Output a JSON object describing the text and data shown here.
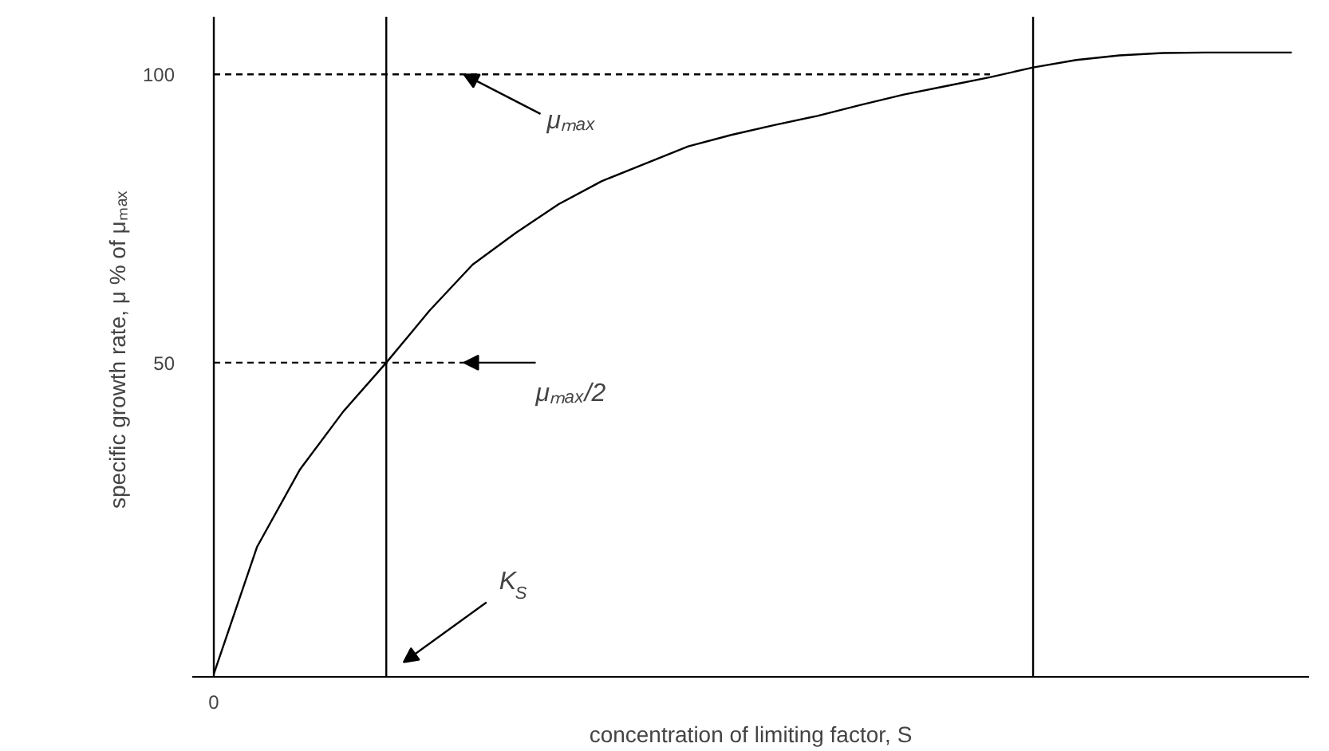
{
  "chart_data": {
    "type": "line",
    "xlabel": "concentration of limiting factor, S",
    "ylabel": "specific growth rate,  μ % of μₘₐₓ",
    "categories": [
      "0",
      null,
      null,
      null,
      null,
      null,
      null,
      null,
      null,
      null,
      null,
      null,
      null,
      null,
      null,
      null,
      null,
      null,
      null,
      null,
      null,
      null,
      null,
      null,
      null,
      null
    ],
    "series": [
      {
        "color": "#000000",
        "values": [
          -4,
          18,
          31.5,
          41.5,
          50,
          59,
          67,
          72.5,
          77.5,
          81.5,
          84.5,
          87.5,
          89.5,
          91.2,
          92.8,
          94.7,
          96.5,
          98,
          99.5,
          101.2,
          102.5,
          103.3,
          103.7,
          103.8,
          103.8,
          103.8
        ]
      },
      {
        "color": "#000000",
        "line_style": "dashed",
        "values": [
          100,
          100,
          100,
          100,
          100,
          100,
          100,
          100,
          100,
          100,
          100,
          100,
          100,
          100,
          100,
          100,
          100,
          100,
          100,
          null,
          null,
          null,
          null,
          null,
          null,
          null
        ]
      },
      {
        "color": "#000000",
        "line_style": "dashed",
        "values": [
          50,
          50,
          50,
          50,
          50,
          50,
          50,
          null,
          null,
          null,
          null,
          null,
          null,
          null,
          null,
          null,
          null,
          null,
          null,
          null,
          null,
          null,
          null,
          null,
          null,
          null
        ]
      }
    ],
    "ylim": [
      -4.5,
      110
    ],
    "yticks": [
      50,
      100
    ],
    "grid": false,
    "line_style": "solid",
    "ref_lines": [
      {
        "axis": "x",
        "value": "0",
        "color": "#000000"
      }
    ],
    "annotations": [
      {
        "text": "μₘₐₓ",
        "y": 100
      },
      "μₘₐₓ/2",
      "K$_{S}$"
    ]
  }
}
